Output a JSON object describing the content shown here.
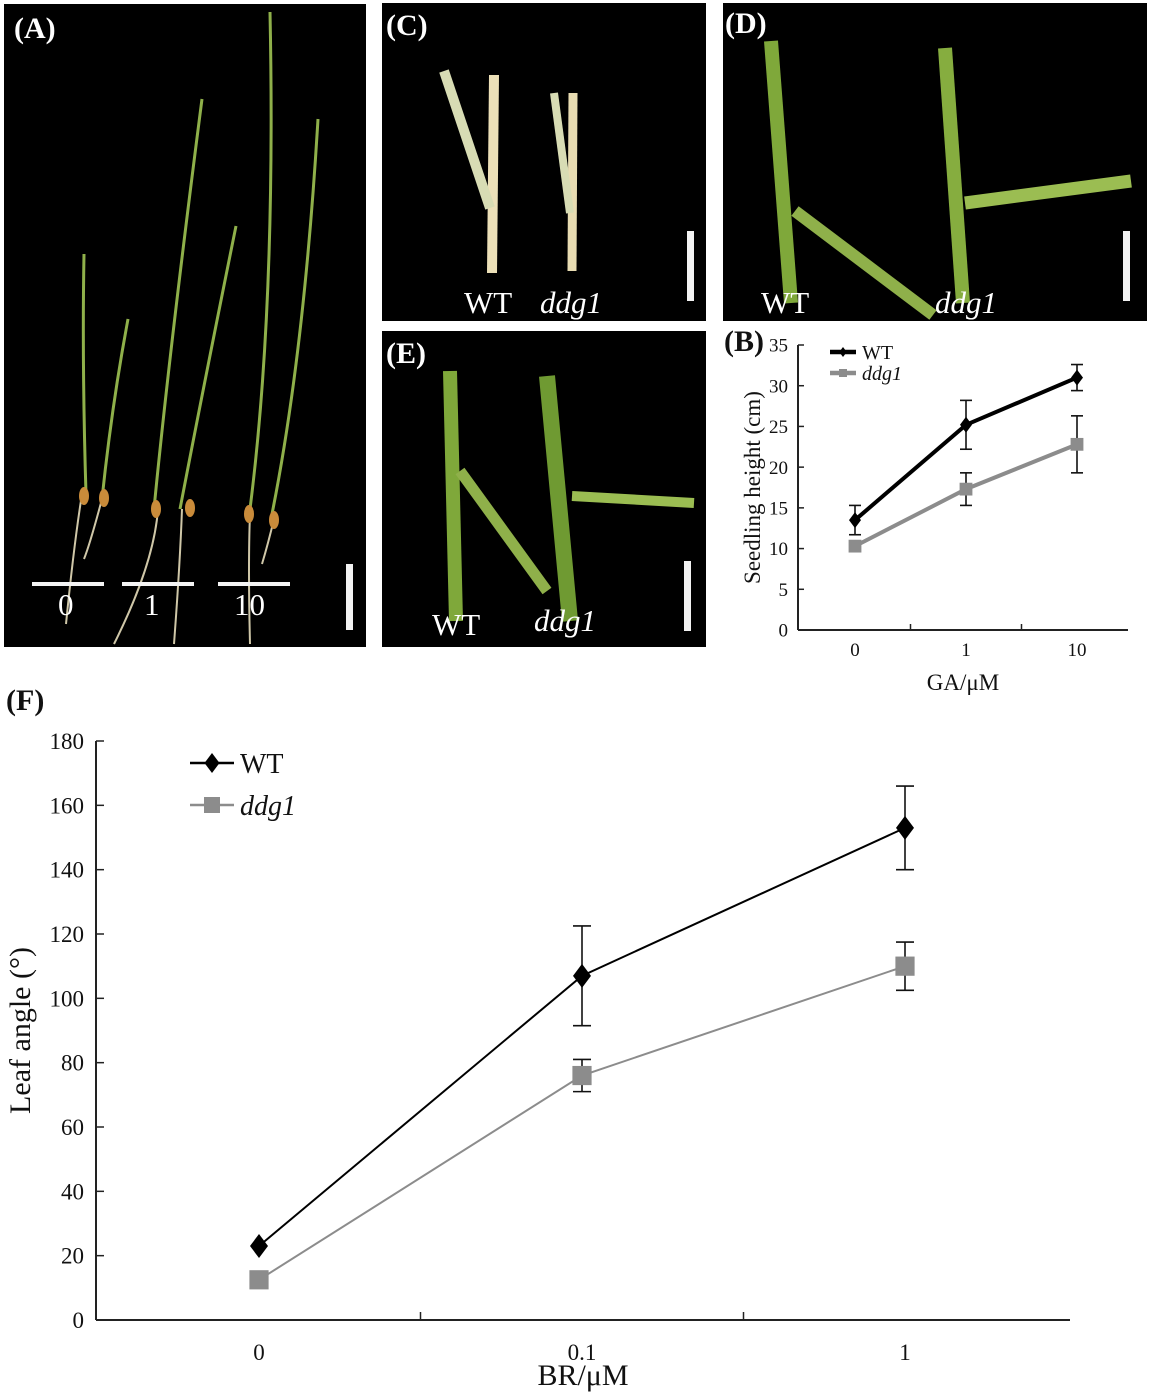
{
  "panels": {
    "a": {
      "label": "(A)",
      "doses": [
        "0",
        "1",
        "10"
      ]
    },
    "b": {
      "label": "(B)"
    },
    "c": {
      "label": "(C)",
      "wt": "WT",
      "mut": "ddg1"
    },
    "d": {
      "label": "(D)",
      "wt": "WT",
      "mut": "ddg1"
    },
    "e": {
      "label": "(E)",
      "wt": "WT",
      "mut": "ddg1"
    },
    "f": {
      "label": "(F)"
    }
  },
  "colors": {
    "wt": "#000000",
    "ddg1": "#8c8c8c",
    "leaf": "#7fa83a",
    "pale_leaf": "#d8dcb4"
  },
  "chart_data": [
    {
      "id": "B",
      "type": "line",
      "categories": [
        "0",
        "1",
        "10"
      ],
      "xlabel": "GA/μM",
      "ylabel": "Seedling height (cm)",
      "ylim": [
        0,
        35
      ],
      "yticks": [
        "0",
        "5",
        "10",
        "15",
        "20",
        "25",
        "30",
        "35"
      ],
      "legend": "top-left",
      "series": [
        {
          "name": "WT",
          "values": [
            13.5,
            25.2,
            31.0
          ],
          "errors": [
            1.8,
            3.0,
            1.6
          ],
          "marker": "diamond"
        },
        {
          "name": "ddg1",
          "values": [
            10.3,
            17.3,
            22.8
          ],
          "errors": [
            0.6,
            2.0,
            3.5
          ],
          "marker": "square"
        }
      ]
    },
    {
      "id": "F",
      "type": "line",
      "categories": [
        "0",
        "0.1",
        "1"
      ],
      "xlabel": "BR/μM",
      "ylabel": "Leaf angle (°)",
      "ylim": [
        0,
        180
      ],
      "yticks": [
        "0",
        "20",
        "40",
        "60",
        "80",
        "100",
        "120",
        "140",
        "160",
        "180"
      ],
      "legend": "top-left",
      "series": [
        {
          "name": "WT",
          "values": [
            23,
            107,
            153
          ],
          "errors": [
            0,
            15.5,
            13
          ],
          "marker": "diamond"
        },
        {
          "name": "ddg1",
          "values": [
            12.5,
            76,
            110
          ],
          "errors": [
            0,
            5,
            7.5
          ],
          "marker": "square"
        }
      ]
    }
  ]
}
